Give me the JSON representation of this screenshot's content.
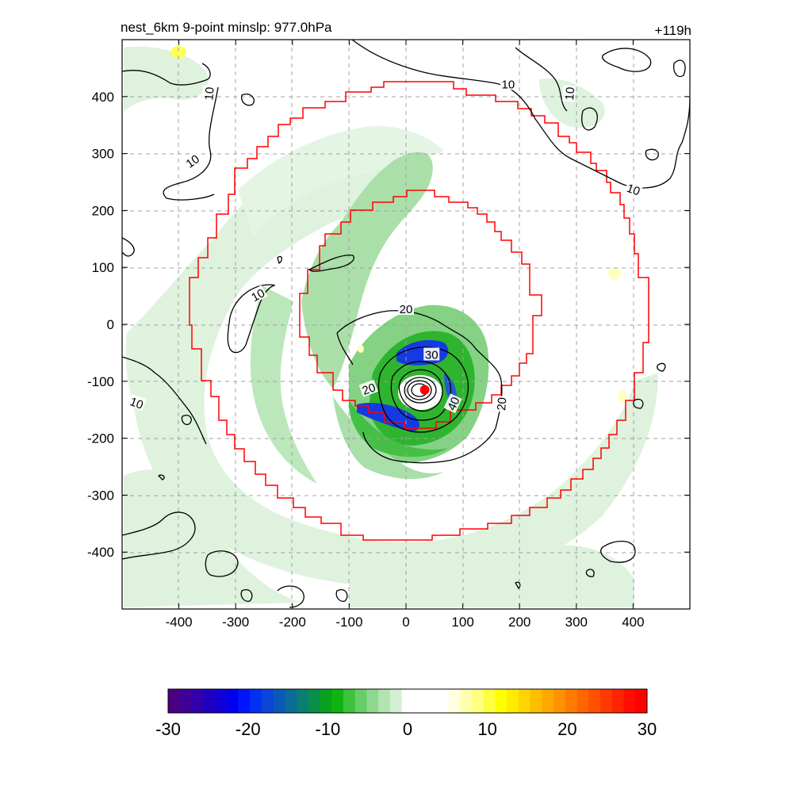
{
  "chart_data": {
    "type": "heatmap",
    "title": "nest_6km  9-point minslp: 977.0hPa",
    "time_label": "+119h",
    "xlim": [
      -500,
      500
    ],
    "ylim": [
      -500,
      500
    ],
    "x_ticks": [
      -400,
      -300,
      -200,
      -100,
      0,
      100,
      200,
      300,
      400
    ],
    "y_ticks": [
      400,
      300,
      200,
      100,
      0,
      -100,
      -200,
      -300,
      -400
    ],
    "grid": true,
    "contour_labels": [
      {
        "text": "10",
        "x": 180,
        "y": 420,
        "rotate": 0
      },
      {
        "text": "10",
        "x": -345,
        "y": 405,
        "rotate": -85
      },
      {
        "text": "10",
        "x": 290,
        "y": 405,
        "rotate": -85
      },
      {
        "text": "10",
        "x": -375,
        "y": 285,
        "rotate": -35
      },
      {
        "text": "10",
        "x": 400,
        "y": 235,
        "rotate": 20
      },
      {
        "text": "10",
        "x": -260,
        "y": 50,
        "rotate": -30
      },
      {
        "text": "10",
        "x": -475,
        "y": -140,
        "rotate": 20
      },
      {
        "text": "20",
        "x": 0,
        "y": 25,
        "rotate": 0
      },
      {
        "text": "30",
        "x": 45,
        "y": -55,
        "rotate": 0
      },
      {
        "text": "20",
        "x": -65,
        "y": -115,
        "rotate": -20
      },
      {
        "text": "40",
        "x": 85,
        "y": -140,
        "rotate": -65
      },
      {
        "text": "20",
        "x": 170,
        "y": -140,
        "rotate": -85
      }
    ],
    "center_marker": {
      "x": 33,
      "y": -115,
      "color": "#ff0000"
    },
    "colorbar": {
      "ticks": [
        "-30",
        "-20",
        "-10",
        "0",
        "10",
        "20",
        "30"
      ],
      "range": [
        -30,
        30
      ],
      "colors": [
        "#4b0082",
        "#3e0096",
        "#3100ab",
        "#2000c0",
        "#1000d6",
        "#0000ee",
        "#0014ff",
        "#0030f0",
        "#0a44d8",
        "#0a58b8",
        "#0a6c98",
        "#0a7e70",
        "#0a8e48",
        "#0aa020",
        "#10b410",
        "#3cc23c",
        "#66ce66",
        "#8ed88e",
        "#b2e4b2",
        "#d4f0d4",
        "#ffffff",
        "#ffffff",
        "#ffffff",
        "#ffffff",
        "#ffffe0",
        "#ffffb0",
        "#ffff80",
        "#ffff40",
        "#ffff00",
        "#ffea00",
        "#ffd400",
        "#ffbe00",
        "#ffa800",
        "#ff9200",
        "#ff7c00",
        "#ff6600",
        "#ff5000",
        "#ff3a00",
        "#ff2400",
        "#ff0e00",
        "#ff0000"
      ]
    },
    "colors": {
      "frame": "#000000",
      "grid": "#a0a0a0",
      "nest_box": "#ff0000",
      "contour": "#000000",
      "shading_light": "#d8f0d8",
      "shading_mid": "#7fd07f",
      "shading_dark": "#18a818",
      "shading_blue": "#0a28d8"
    }
  }
}
